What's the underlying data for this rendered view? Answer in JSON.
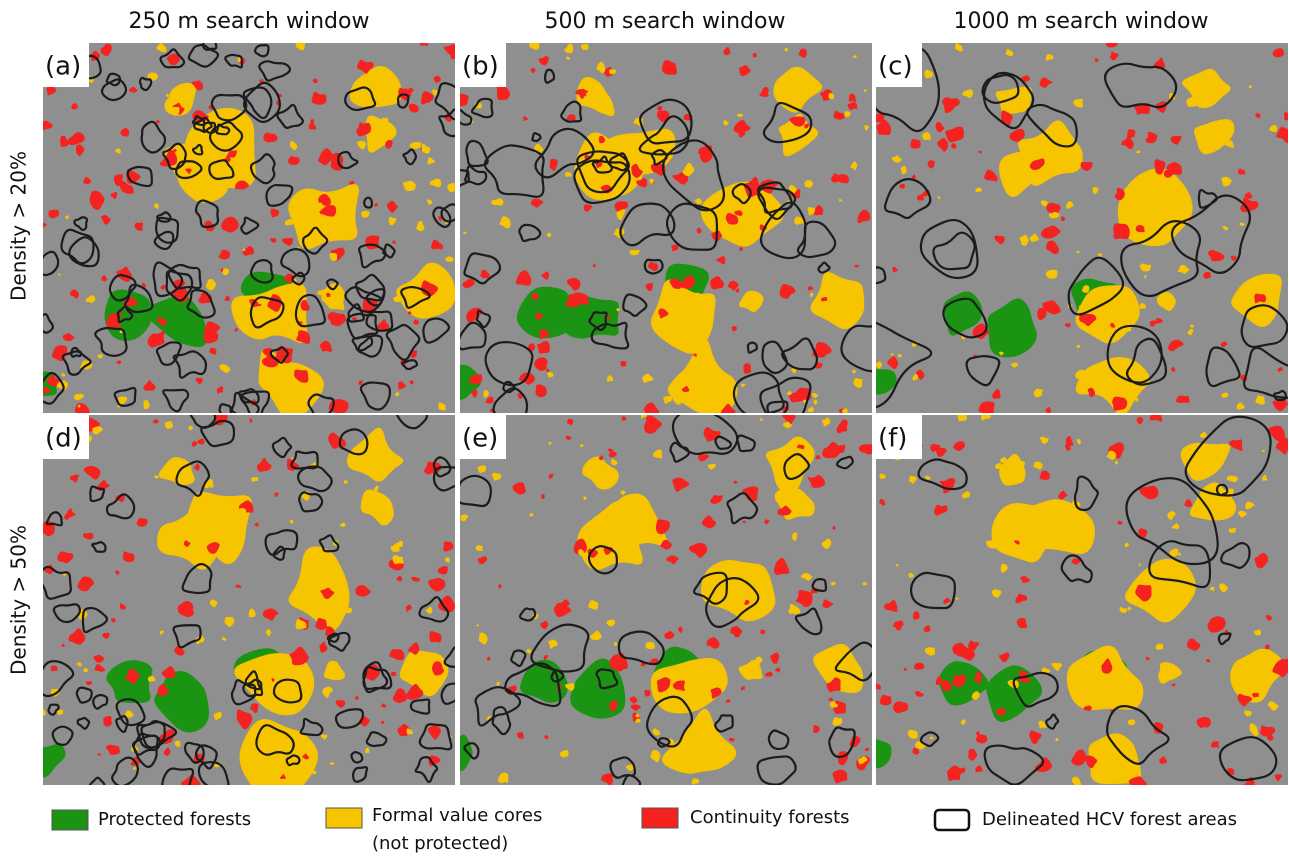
{
  "columns": [
    "250 m search window",
    "500 m search window",
    "1000 m search window"
  ],
  "rows": [
    "Density > 20%",
    "Density > 50%"
  ],
  "panels": [
    "(a)",
    "(b)",
    "(c)",
    "(d)",
    "(e)",
    "(f)"
  ],
  "legend": [
    {
      "label": "Protected forests"
    },
    {
      "label": [
        "Formal value cores",
        "(not protected)"
      ]
    },
    {
      "label": "Continuity forests"
    },
    {
      "label": "Delineated HCV forest areas"
    }
  ]
}
